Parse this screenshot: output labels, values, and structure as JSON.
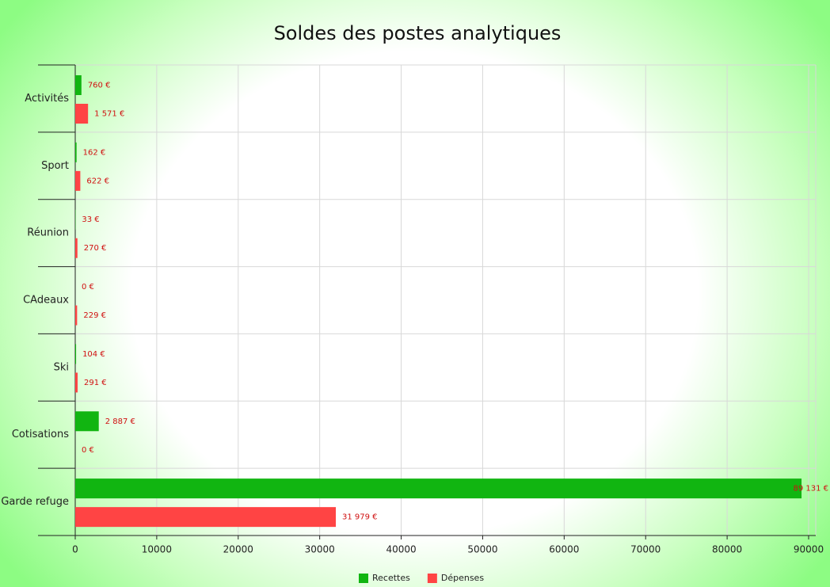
{
  "chart_data": {
    "type": "bar",
    "orientation": "horizontal",
    "title": "Soldes des postes analytiques",
    "categories": [
      "Activités",
      "Sport",
      "Réunion",
      "CAdeaux",
      "Ski",
      "Cotisations",
      "Garde refuge"
    ],
    "series": [
      {
        "name": "Recettes",
        "color": "#11b511",
        "values": [
          760,
          162,
          33,
          0,
          104,
          2887,
          89131
        ],
        "value_labels": [
          "760 €",
          "162 €",
          "33 €",
          "0 €",
          "104 €",
          "2 887 €",
          "89 131 €"
        ]
      },
      {
        "name": "Dépenses",
        "color": "#ff4444",
        "values": [
          1571,
          622,
          270,
          229,
          291,
          0,
          31979
        ],
        "value_labels": [
          "1 571 €",
          "622 €",
          "270 €",
          "229 €",
          "291 €",
          "0 €",
          "31 979 €"
        ]
      }
    ],
    "xlim": [
      0,
      90000
    ],
    "xticks": [
      0,
      10000,
      20000,
      30000,
      40000,
      50000,
      60000,
      70000,
      80000,
      90000
    ],
    "grid": true,
    "legend": "bottom"
  }
}
